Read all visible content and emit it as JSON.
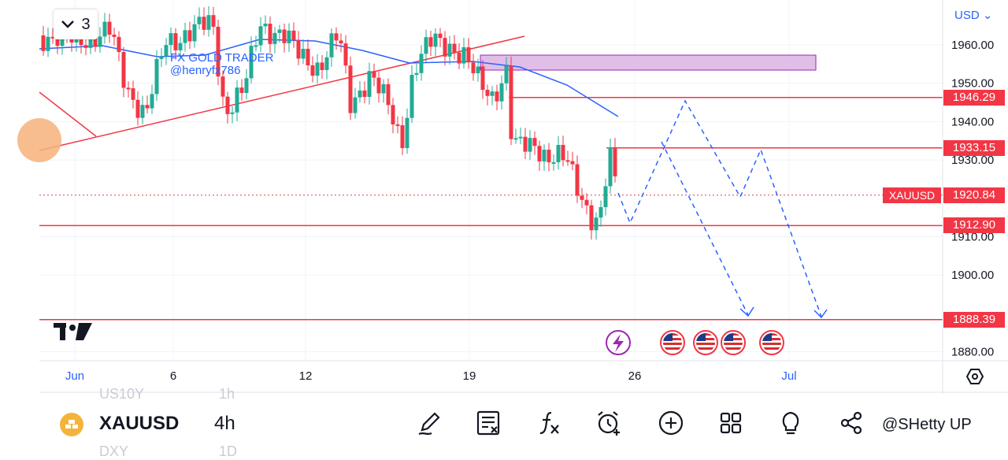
{
  "chart": {
    "currency": "USD",
    "intervals_count": "3",
    "watermark_name": "FX GOLD TRADER",
    "watermark_handle": "@henryfx786",
    "price_ticks": [
      {
        "value": 1960,
        "label": "1960.00"
      },
      {
        "value": 1950,
        "label": "1950.00"
      },
      {
        "value": 1940,
        "label": "1940.00"
      },
      {
        "value": 1930,
        "label": "1930.00"
      },
      {
        "value": 1910,
        "label": "1910.00"
      },
      {
        "value": 1900,
        "label": "1900.00"
      },
      {
        "value": 1880,
        "label": "1880.00"
      }
    ],
    "time_ticks": [
      {
        "label": "Jun",
        "month": true
      },
      {
        "label": "6",
        "month": false
      },
      {
        "label": "12",
        "month": false
      },
      {
        "label": "19",
        "month": false
      },
      {
        "label": "26",
        "month": false
      },
      {
        "label": "Jul",
        "month": true
      }
    ],
    "levels": [
      {
        "value": 1946.29,
        "label": "1946.29"
      },
      {
        "value": 1933.15,
        "label": "1933.15"
      },
      {
        "value": 1912.9,
        "label": "1912.90"
      },
      {
        "value": 1888.39,
        "label": "1888.39"
      }
    ],
    "current": {
      "symbol": "XAUUSD",
      "value": 1920.84,
      "label": "1920.84"
    },
    "colors": {
      "up": "#22ab94",
      "down": "#f23645",
      "ma": "#2962ff",
      "zone_fill": "#e1bee7",
      "zone_border": "#9c27b0",
      "level": "#f23645"
    }
  },
  "toolbar": {
    "symbol": "XAUUSD",
    "timeframe": "4h",
    "ghost_above_symbol": "US10Y",
    "ghost_above_tf": "1h",
    "ghost_below_symbol": "DXY",
    "ghost_below_tf": "1D",
    "tools": [
      "pen-icon",
      "text-note-icon",
      "function-icon",
      "alarm-add-icon",
      "plus-circle-icon",
      "grid-icon",
      "lightbulb-icon",
      "share-icon"
    ],
    "credit": "@SHetty UP"
  }
}
